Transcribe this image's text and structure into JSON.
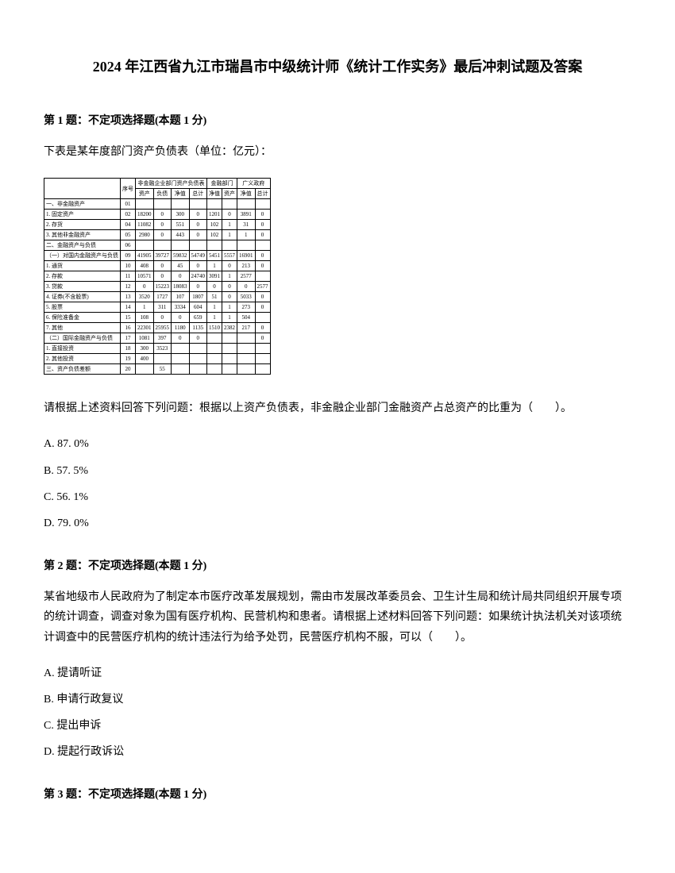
{
  "title": "2024 年江西省九江市瑞昌市中级统计师《统计工作实务》最后冲刺试题及答案",
  "q1": {
    "header": "第 1 题：不定项选择题(本题 1 分)",
    "intro": "下表是某年度部门资产负债表（单位：亿元）：",
    "question": "请根据上述资料回答下列问题：根据以上资产负债表，非金融企业部门金融资产占总资产的比重为（　　）。",
    "optA": "A. 87. 0%",
    "optB": "B. 57. 5%",
    "optC": "C. 56. 1%",
    "optD": "D. 79. 0%"
  },
  "q2": {
    "header": "第 2 题：不定项选择题(本题 1 分)",
    "question": "某省地级市人民政府为了制定本市医疗改革发展规划，需由市发展改革委员会、卫生计生局和统计局共同组织开展专项的统计调查，调查对象为国有医疗机构、民营机构和患者。请根据上述材料回答下列问题：如果统计执法机关对该项统计调查中的民营医疗机构的统计违法行为给予处罚，民营医疗机构不服，可以（　　）。",
    "optA": "A. 提请听证",
    "optB": "B. 申请行政复议",
    "optC": "C. 提出申诉",
    "optD": "D. 提起行政诉讼"
  },
  "q3": {
    "header": "第 3 题：不定项选择题(本题 1 分)"
  },
  "table": {
    "headers": {
      "col1": "",
      "col2": "序号",
      "group1": "非金融企业部门资产负债表",
      "group2": "金融部门",
      "group3": "广义政府",
      "sub1": "资产",
      "sub2": "负债",
      "sub3": "净值",
      "sub4": "总计"
    },
    "rows": [
      {
        "label": "一、非金融资产",
        "seq": "01",
        "v1": "",
        "v2": "",
        "v3": "",
        "v4": "",
        "v5": "",
        "v6": "",
        "v7": "",
        "v8": ""
      },
      {
        "label": "1. 固定资产",
        "seq": "02",
        "v1": "18200",
        "v2": "0",
        "v3": "300",
        "v4": "0",
        "v5": "1201",
        "v6": "0",
        "v7": "3891",
        "v8": "0"
      },
      {
        "label": "2. 存货",
        "seq": "04",
        "v1": "11082",
        "v2": "0",
        "v3": "551",
        "v4": "0",
        "v5": "102",
        "v6": "1",
        "v7": "31",
        "v8": "0"
      },
      {
        "label": "3. 其他非金融资产",
        "seq": "05",
        "v1": "2980",
        "v2": "0",
        "v3": "443",
        "v4": "0",
        "v5": "102",
        "v6": "1",
        "v7": "1",
        "v8": "0"
      },
      {
        "label": "二、金融资产与负债",
        "seq": "06",
        "v1": "",
        "v2": "",
        "v3": "",
        "v4": "",
        "v5": "",
        "v6": "",
        "v7": "",
        "v8": ""
      },
      {
        "label": "（一）对国内金融资产与负债",
        "seq": "09",
        "v1": "41905",
        "v2": "39727",
        "v3": "59832",
        "v4": "54749",
        "v5": "5451",
        "v6": "5557",
        "v7": "16901",
        "v8": "0"
      },
      {
        "label": "1. 通货",
        "seq": "10",
        "v1": "408",
        "v2": "0",
        "v3": "45",
        "v4": "0",
        "v5": "1",
        "v6": "0",
        "v7": "213",
        "v8": "0"
      },
      {
        "label": "2. 存款",
        "seq": "11",
        "v1": "10571",
        "v2": "0",
        "v3": "0",
        "v4": "24740",
        "v5": "3091",
        "v6": "1",
        "v7": "2577",
        "v8": ""
      },
      {
        "label": "3. 贷款",
        "seq": "12",
        "v1": "0",
        "v2": "15223",
        "v3": "18083",
        "v4": "0",
        "v5": "0",
        "v6": "0",
        "v7": "0",
        "v8": "2577"
      },
      {
        "label": "4. 证券(不含股票)",
        "seq": "13",
        "v1": "3520",
        "v2": "1727",
        "v3": "107",
        "v4": "1807",
        "v5": "51",
        "v6": "0",
        "v7": "5033",
        "v8": "0"
      },
      {
        "label": "5. 股票",
        "seq": "14",
        "v1": "1",
        "v2": "311",
        "v3": "3334",
        "v4": "604",
        "v5": "1",
        "v6": "1",
        "v7": "273",
        "v8": "0"
      },
      {
        "label": "6. 保险准备金",
        "seq": "15",
        "v1": "108",
        "v2": "0",
        "v3": "0",
        "v4": "659",
        "v5": "1",
        "v6": "1",
        "v7": "504",
        "v8": ""
      },
      {
        "label": "7. 其他",
        "seq": "16",
        "v1": "22301",
        "v2": "25955",
        "v3": "1180",
        "v4": "1135",
        "v5": "1510",
        "v6": "2382",
        "v7": "217",
        "v8": "0"
      },
      {
        "label": "（二）国际金融资产与负债",
        "seq": "17",
        "v1": "1081",
        "v2": "397",
        "v3": "0",
        "v4": "0",
        "v5": "",
        "v6": "",
        "v7": "",
        "v8": "0"
      },
      {
        "label": "1. 直接投资",
        "seq": "18",
        "v1": "300",
        "v2": "3523",
        "v3": "",
        "v4": "",
        "v5": "",
        "v6": "",
        "v7": "",
        "v8": ""
      },
      {
        "label": "2. 其他投资",
        "seq": "19",
        "v1": "400",
        "v2": "",
        "v3": "",
        "v4": "",
        "v5": "",
        "v6": "",
        "v7": "",
        "v8": ""
      },
      {
        "label": "三、资产负债差额",
        "seq": "20",
        "v1": "",
        "v2": "55",
        "v3": "",
        "v4": "",
        "v5": "",
        "v6": "",
        "v7": "",
        "v8": ""
      }
    ]
  }
}
